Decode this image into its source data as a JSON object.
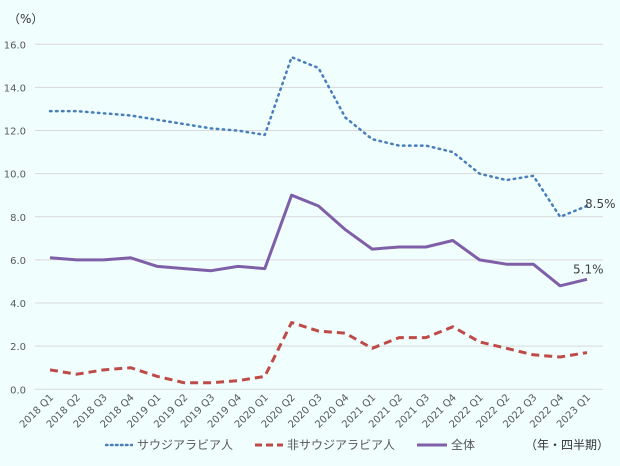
{
  "chart_data": {
    "type": "line",
    "y_unit_label": "（%）",
    "x_unit_label": "（年・四半期）",
    "ylim": [
      0,
      16
    ],
    "yticks": [
      "0.0",
      "2.0",
      "4.0",
      "6.0",
      "8.0",
      "10.0",
      "12.0",
      "14.0",
      "16.0"
    ],
    "grid": true,
    "legend_position": "bottom",
    "categories": [
      "2018 Q1",
      "2018 Q2",
      "2018 Q3",
      "2018 Q4",
      "2019 Q1",
      "2019 Q2",
      "2019 Q3",
      "2019 Q4",
      "2020 Q1",
      "2020 Q2",
      "2020 Q3",
      "2020 Q4",
      "2021 Q1",
      "2021 Q2",
      "2021 Q3",
      "2021 Q4",
      "2022 Q1",
      "2022 Q2",
      "2022 Q3",
      "2022 Q4",
      "2023 Q1"
    ],
    "series": [
      {
        "name": "サウジアラビア人",
        "color": "#4a7ebb",
        "style": "dotted",
        "end_label": "8.5%",
        "values": [
          12.9,
          12.9,
          12.8,
          12.7,
          12.5,
          12.3,
          12.1,
          12.0,
          11.8,
          15.4,
          14.9,
          12.6,
          11.6,
          11.3,
          11.3,
          11.0,
          10.0,
          9.7,
          9.9,
          8.0,
          8.5
        ]
      },
      {
        "name": "非サウジアラビア人",
        "color": "#be4b48",
        "style": "dashed",
        "end_label": "",
        "values": [
          0.9,
          0.7,
          0.9,
          1.0,
          0.6,
          0.3,
          0.3,
          0.4,
          0.6,
          3.1,
          2.7,
          2.6,
          1.9,
          2.4,
          2.4,
          2.9,
          2.2,
          1.9,
          1.6,
          1.5,
          1.7
        ]
      },
      {
        "name": "全体",
        "color": "#7f60a8",
        "style": "solid",
        "end_label": "5.1%",
        "values": [
          6.1,
          6.0,
          6.0,
          6.1,
          5.7,
          5.6,
          5.5,
          5.7,
          5.6,
          9.0,
          8.5,
          7.4,
          6.5,
          6.6,
          6.6,
          6.9,
          6.0,
          5.8,
          5.8,
          4.8,
          5.1
        ]
      }
    ]
  }
}
